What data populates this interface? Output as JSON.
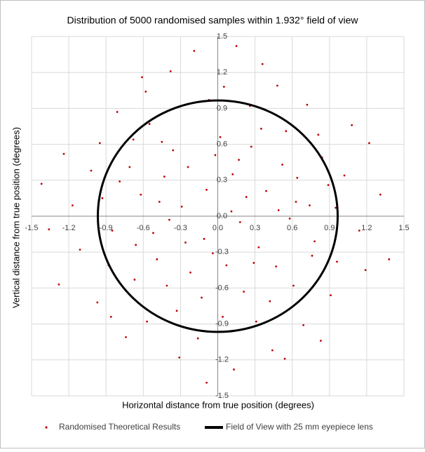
{
  "chart_data": {
    "type": "scatter",
    "title": "Distribution of 5000 randomised samples within 1.932° field of view",
    "x_label": "Horizontal distance from true position (degrees)",
    "y_label": "Vertical distance from true position (degrees)",
    "xlim": [
      -1.5,
      1.5
    ],
    "ylim": [
      -1.5,
      1.5
    ],
    "xticks": [
      -1.5,
      -1.2,
      -0.9,
      -0.6,
      -0.3,
      {
        "value": 0,
        "label": "0.0"
      },
      0.3,
      0.6,
      0.9,
      1.2,
      1.5
    ],
    "yticks": [
      -1.5,
      -1.2,
      -0.9,
      -0.6,
      -0.3,
      {
        "value": 0,
        "label": "0.0"
      },
      0.3,
      0.6,
      0.9,
      1.2,
      1.5
    ],
    "grid": true,
    "legend": "bottom",
    "series": [
      {
        "name": "Randomised Theoretical Results",
        "color": "#c00000",
        "x": [
          0.12,
          -0.45,
          0.78,
          -0.93,
          0.31,
          -0.22,
          0.55,
          -0.67,
          1.02,
          -1.11,
          0.05,
          -0.38,
          0.44,
          -0.81,
          0.91,
          0.18,
          -0.09,
          0.63,
          -0.52,
          0.27,
          -0.71,
          0.84,
          -0.33,
          0.47,
          -1.24,
          1.19,
          -0.16,
          0.72,
          -0.58,
          0.36,
          -0.97,
          1.08,
          -0.04,
          0.21,
          -0.29,
          0.58,
          -0.85,
          0.95,
          0.02,
          -0.43,
          0.39,
          -0.62,
          0.13,
          -0.19,
          0.69,
          -1.02,
          1.31,
          -1.36,
          0.83,
          -0.74,
          0.26,
          -0.49,
          0.11,
          -0.13,
          0.52,
          -0.36,
          0.76,
          -0.88,
          0.04,
          -0.07,
          1.14,
          -1.17,
          0.42,
          -0.55,
          0.64,
          -0.26,
          0.33,
          -0.66,
          0.17,
          -0.41,
          0.89,
          -0.95,
          0.48,
          -0.31,
          1.22,
          -1.28,
          0.61,
          -0.79,
          0.23,
          -0.11,
          0.07,
          -0.02,
          0.96,
          -0.57,
          0.35,
          -0.68,
          0.74,
          -0.47,
          1.38,
          -1.42,
          0.15,
          -0.09,
          0.54,
          -0.61,
          0.81,
          -0.86,
          0.29,
          -0.24,
          0.49,
          -0.39
        ],
        "y": [
          0.35,
          0.62,
          -0.21,
          0.15,
          -0.88,
          -0.47,
          0.71,
          -0.53,
          0.34,
          -0.28,
          1.08,
          1.21,
          -1.12,
          0.87,
          -0.66,
          -0.05,
          0.22,
          0.12,
          -0.14,
          0.58,
          0.41,
          0.49,
          -0.79,
          -0.42,
          0.52,
          -0.45,
          -1.02,
          0.93,
          1.04,
          1.27,
          -0.72,
          0.76,
          -0.31,
          -0.63,
          0.08,
          -0.02,
          -0.12,
          0.07,
          0.66,
          0.33,
          0.21,
          0.18,
          -1.28,
          1.38,
          -0.91,
          0.38,
          0.18,
          -0.11,
          -1.04,
          -1.01,
          0.92,
          -0.36,
          0.04,
          -0.68,
          0.43,
          0.55,
          -0.33,
          -0.41,
          -0.84,
          0.97,
          -0.12,
          0.09,
          -0.71,
          0.77,
          0.32,
          -0.22,
          -0.26,
          -0.24,
          0.47,
          -0.58,
          0.26,
          0.61,
          1.09,
          -1.18,
          0.61,
          -0.57,
          -0.58,
          0.29,
          0.16,
          -0.19,
          -0.41,
          0.51,
          -0.38,
          -0.88,
          0.73,
          0.64,
          0.09,
          0.12,
          -0.36,
          0.27,
          1.42,
          -1.39,
          -1.19,
          1.16,
          0.68,
          -0.84,
          -0.39,
          0.41,
          0.05,
          -0.03
        ]
      },
      {
        "name": "Field of View with 25 mm eyepiece lens",
        "color": "#000000",
        "type": "circle",
        "radius": 0.966
      }
    ]
  }
}
